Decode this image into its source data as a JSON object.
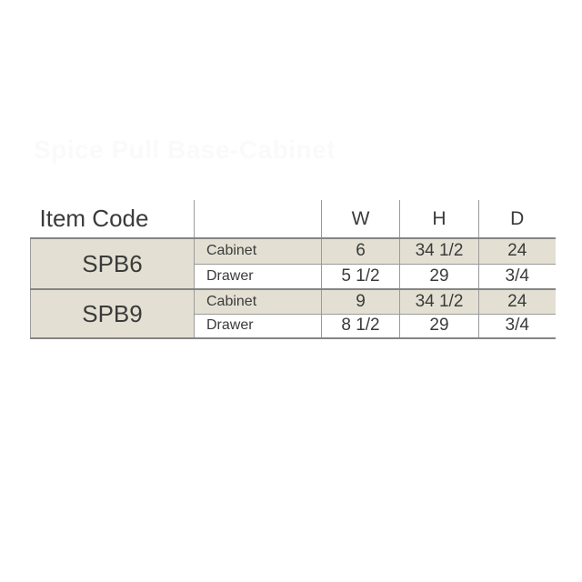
{
  "watermark": {
    "text": "Spice Pull Base-Cabinet"
  },
  "colors": {
    "background": "#ffffff",
    "shaded_cell_bg": "#e3e0d3",
    "grid_line": "#9a9a9a",
    "grid_line_strong": "#858585",
    "text": "#3b3b3b",
    "watermark_text": "#fafafa"
  },
  "table": {
    "header": {
      "item_code": "Item Code",
      "type": "",
      "dims": [
        "W",
        "H",
        "D"
      ]
    },
    "groups": [
      {
        "code": "SPB6",
        "rows": [
          {
            "type": "Cabinet",
            "values": [
              "6",
              "34 1/2",
              "24"
            ]
          },
          {
            "type": "Drawer",
            "values": [
              "5 1/2",
              "29",
              "3/4"
            ]
          }
        ]
      },
      {
        "code": "SPB9",
        "rows": [
          {
            "type": "Cabinet",
            "values": [
              "9",
              "34 1/2",
              "24"
            ]
          },
          {
            "type": "Drawer",
            "values": [
              "8 1/2",
              "29",
              "3/4"
            ]
          }
        ]
      }
    ]
  }
}
